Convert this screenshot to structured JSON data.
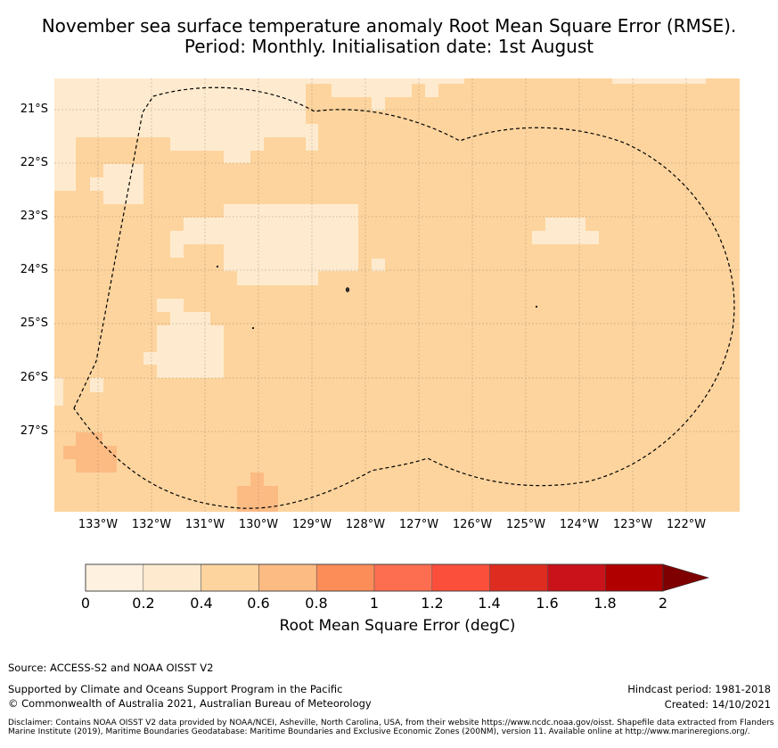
{
  "title": {
    "line1": "November sea surface temperature anomaly Root Mean Square Error (RMSE).",
    "line2": "Period: Monthly. Initialisation date: 1st August"
  },
  "map": {
    "background_color": "#fdd49e",
    "low_patch_color": "#feebcf",
    "high_patch_color": "#fdbb84",
    "boundary_style": "dashed black line (maritime boundary / EEZ)",
    "lat_labels": [
      "21°S",
      "22°S",
      "23°S",
      "24°S",
      "25°S",
      "26°S",
      "27°S"
    ],
    "lon_labels": [
      "133°W",
      "132°W",
      "131°W",
      "130°W",
      "129°W",
      "128°W",
      "127°W",
      "126°W",
      "125°W",
      "124°W",
      "123°W",
      "122°W"
    ]
  },
  "colorbar": {
    "label": "Root Mean Square Error (degC)",
    "ticks": [
      "0",
      "0.2",
      "0.4",
      "0.6",
      "0.8",
      "1",
      "1.2",
      "1.4",
      "1.6",
      "1.8",
      "2"
    ],
    "colors": [
      "#fff1e0",
      "#feebcf",
      "#fdd49e",
      "#fdbb84",
      "#fc8d59",
      "#fd6e51",
      "#fb4f3c",
      "#de2d20",
      "#c9121a",
      "#b10000"
    ],
    "extend_color": "#7f0000"
  },
  "footer": {
    "source": "Source: ACCESS-S2 and NOAA OISST V2",
    "support": "Supported by Climate and Oceans Support Program in the Pacific",
    "copyright": "© Commonwealth of Australia 2021, Australian Bureau of Meteorology",
    "hindcast": "Hindcast period: 1981-2018",
    "created": "Created: 14/10/2021",
    "disclaimer": "Disclaimer: Contains NOAA OISST V2 data provided by NOAA/NCEI, Asheville, North Carolina, USA, from their website https://www.ncdc.noaa.gov/oisst. Shapefile data extracted from Flanders Marine Institute (2019), Maritime Boundaries Geodatabase: Maritime Boundaries and Exclusive Economic Zones (200NM), version 11. Available online at http://www.marineregions.org/."
  }
}
